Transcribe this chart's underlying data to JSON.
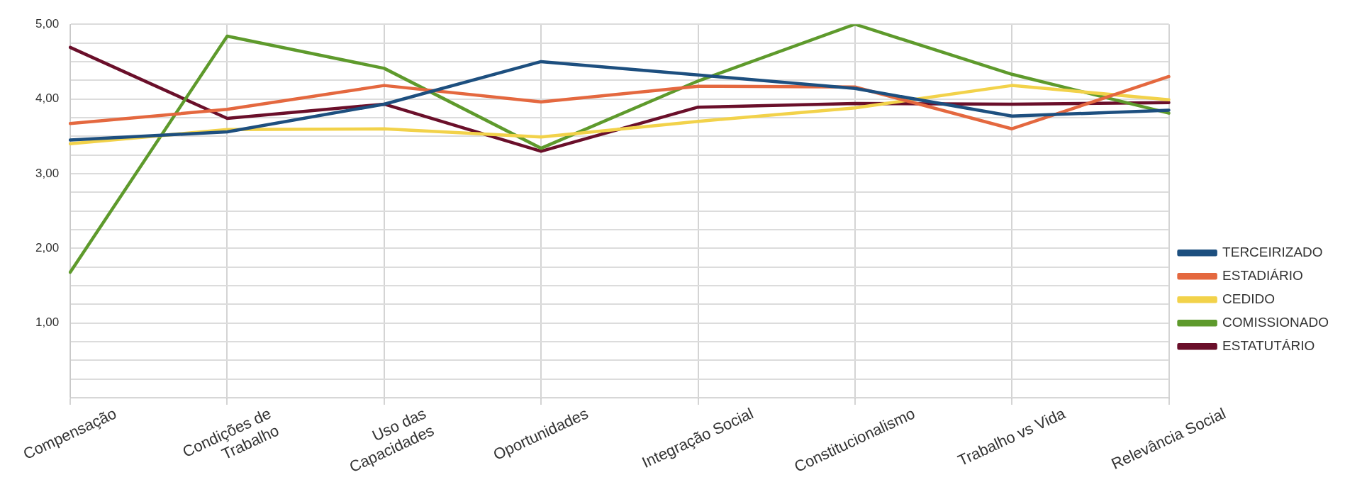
{
  "chart_data": {
    "type": "line",
    "categories": [
      "Compensação",
      "Condições de Trabalho",
      "Uso das Capacidades",
      "Oportunidades",
      "Integração Social",
      "Constitucionalismo",
      "Trabalho vs Vida",
      "Relevância Social"
    ],
    "series": [
      {
        "name": "TERCEIRIZADO",
        "color": "#1d4f7f",
        "values": [
          3.45,
          3.56,
          3.93,
          4.5,
          4.32,
          4.14,
          3.77,
          3.85
        ]
      },
      {
        "name": "ESTADIÁRIO",
        "color": "#e4683f",
        "values": [
          3.67,
          3.86,
          4.18,
          3.96,
          4.17,
          4.16,
          3.6,
          4.3
        ]
      },
      {
        "name": "CEDIDO",
        "color": "#f2d24a",
        "values": [
          3.4,
          3.59,
          3.6,
          3.49,
          3.7,
          3.88,
          4.18,
          3.99
        ]
      },
      {
        "name": "COMISSIONADO",
        "color": "#5e9a2c",
        "values": [
          1.68,
          4.84,
          4.41,
          3.34,
          4.24,
          5.0,
          4.33,
          3.81
        ]
      },
      {
        "name": "ESTATUTÁRIO",
        "color": "#6a0f2a",
        "values": [
          4.69,
          3.74,
          3.93,
          3.3,
          3.89,
          3.94,
          3.93,
          3.95
        ]
      }
    ],
    "ylim": [
      0,
      5
    ],
    "yticks": [
      {
        "value": 0,
        "label": null
      },
      {
        "value": 0.25,
        "label": null
      },
      {
        "value": 0.5,
        "label": null
      },
      {
        "value": 0.75,
        "label": null
      },
      {
        "value": 1,
        "label": "1,00"
      },
      {
        "value": 1.25,
        "label": null
      },
      {
        "value": 1.5,
        "label": null
      },
      {
        "value": 1.75,
        "label": null
      },
      {
        "value": 2,
        "label": "2,00"
      },
      {
        "value": 2.25,
        "label": null
      },
      {
        "value": 2.5,
        "label": null
      },
      {
        "value": 2.75,
        "label": null
      },
      {
        "value": 3,
        "label": "3,00"
      },
      {
        "value": 3.25,
        "label": null
      },
      {
        "value": 3.5,
        "label": null
      },
      {
        "value": 3.75,
        "label": null
      },
      {
        "value": 4,
        "label": "4,00"
      },
      {
        "value": 4.25,
        "label": null
      },
      {
        "value": 4.5,
        "label": null
      },
      {
        "value": 4.75,
        "label": null
      },
      {
        "value": 5,
        "label": "5,00"
      }
    ],
    "grid": true,
    "legend": "right",
    "line_style": "solid"
  }
}
